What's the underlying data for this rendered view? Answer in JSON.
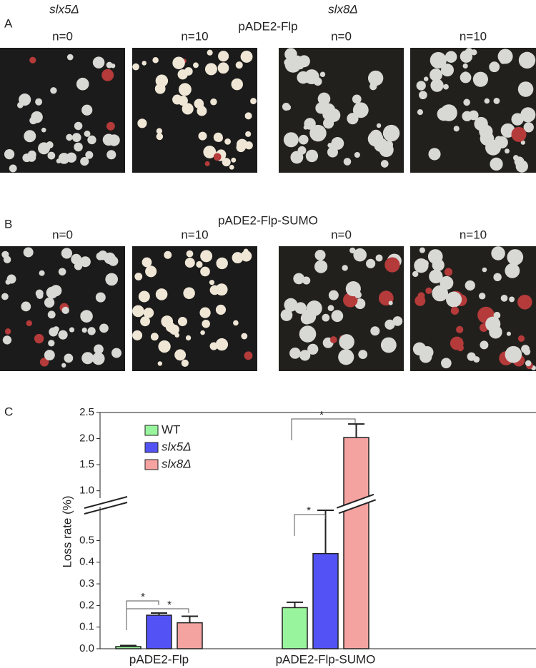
{
  "panels": {
    "strain_labels": [
      "slx5Δ",
      "slx8Δ"
    ],
    "A": {
      "letter": "A",
      "title": "pADE2-Flp",
      "labels": [
        "n=0",
        "n=10",
        "n=0",
        "n=10"
      ]
    },
    "B": {
      "letter": "B",
      "title": "pADE2-Flp-SUMO",
      "labels": [
        "n=0",
        "n=10",
        "n=0",
        "n=10"
      ]
    }
  },
  "chart_data": {
    "type": "bar",
    "letter": "C",
    "ylabel": "Loss rate (%)",
    "categories": [
      "pADE2-Flp",
      "pADE2-Flp-SUMO"
    ],
    "series": [
      {
        "name": "WT",
        "color": "#99f59d",
        "values": [
          0.01,
          0.19
        ],
        "errors": [
          0.005,
          0.025
        ]
      },
      {
        "name": "slx5Δ",
        "color": "#5353f5",
        "values": [
          0.155,
          0.44
        ],
        "errors": [
          0.01,
          0.2
        ]
      },
      {
        "name": "slx8Δ",
        "color": "#f5a3a1",
        "values": [
          0.12,
          2.02
        ],
        "errors": [
          0.03,
          0.26
        ]
      }
    ],
    "ylim": [
      0,
      2.5
    ],
    "axis_break": [
      0.65,
      0.9
    ],
    "yticks": [
      {
        "value": 0,
        "label": "0.0"
      },
      0.1,
      0.2,
      0.3,
      0.4,
      0.5,
      {
        "value": 1,
        "label": "1.0"
      },
      1.5,
      {
        "value": 2,
        "label": "2.0"
      },
      2.5
    ],
    "annotations": [
      "*",
      "*",
      "*",
      "*"
    ]
  }
}
